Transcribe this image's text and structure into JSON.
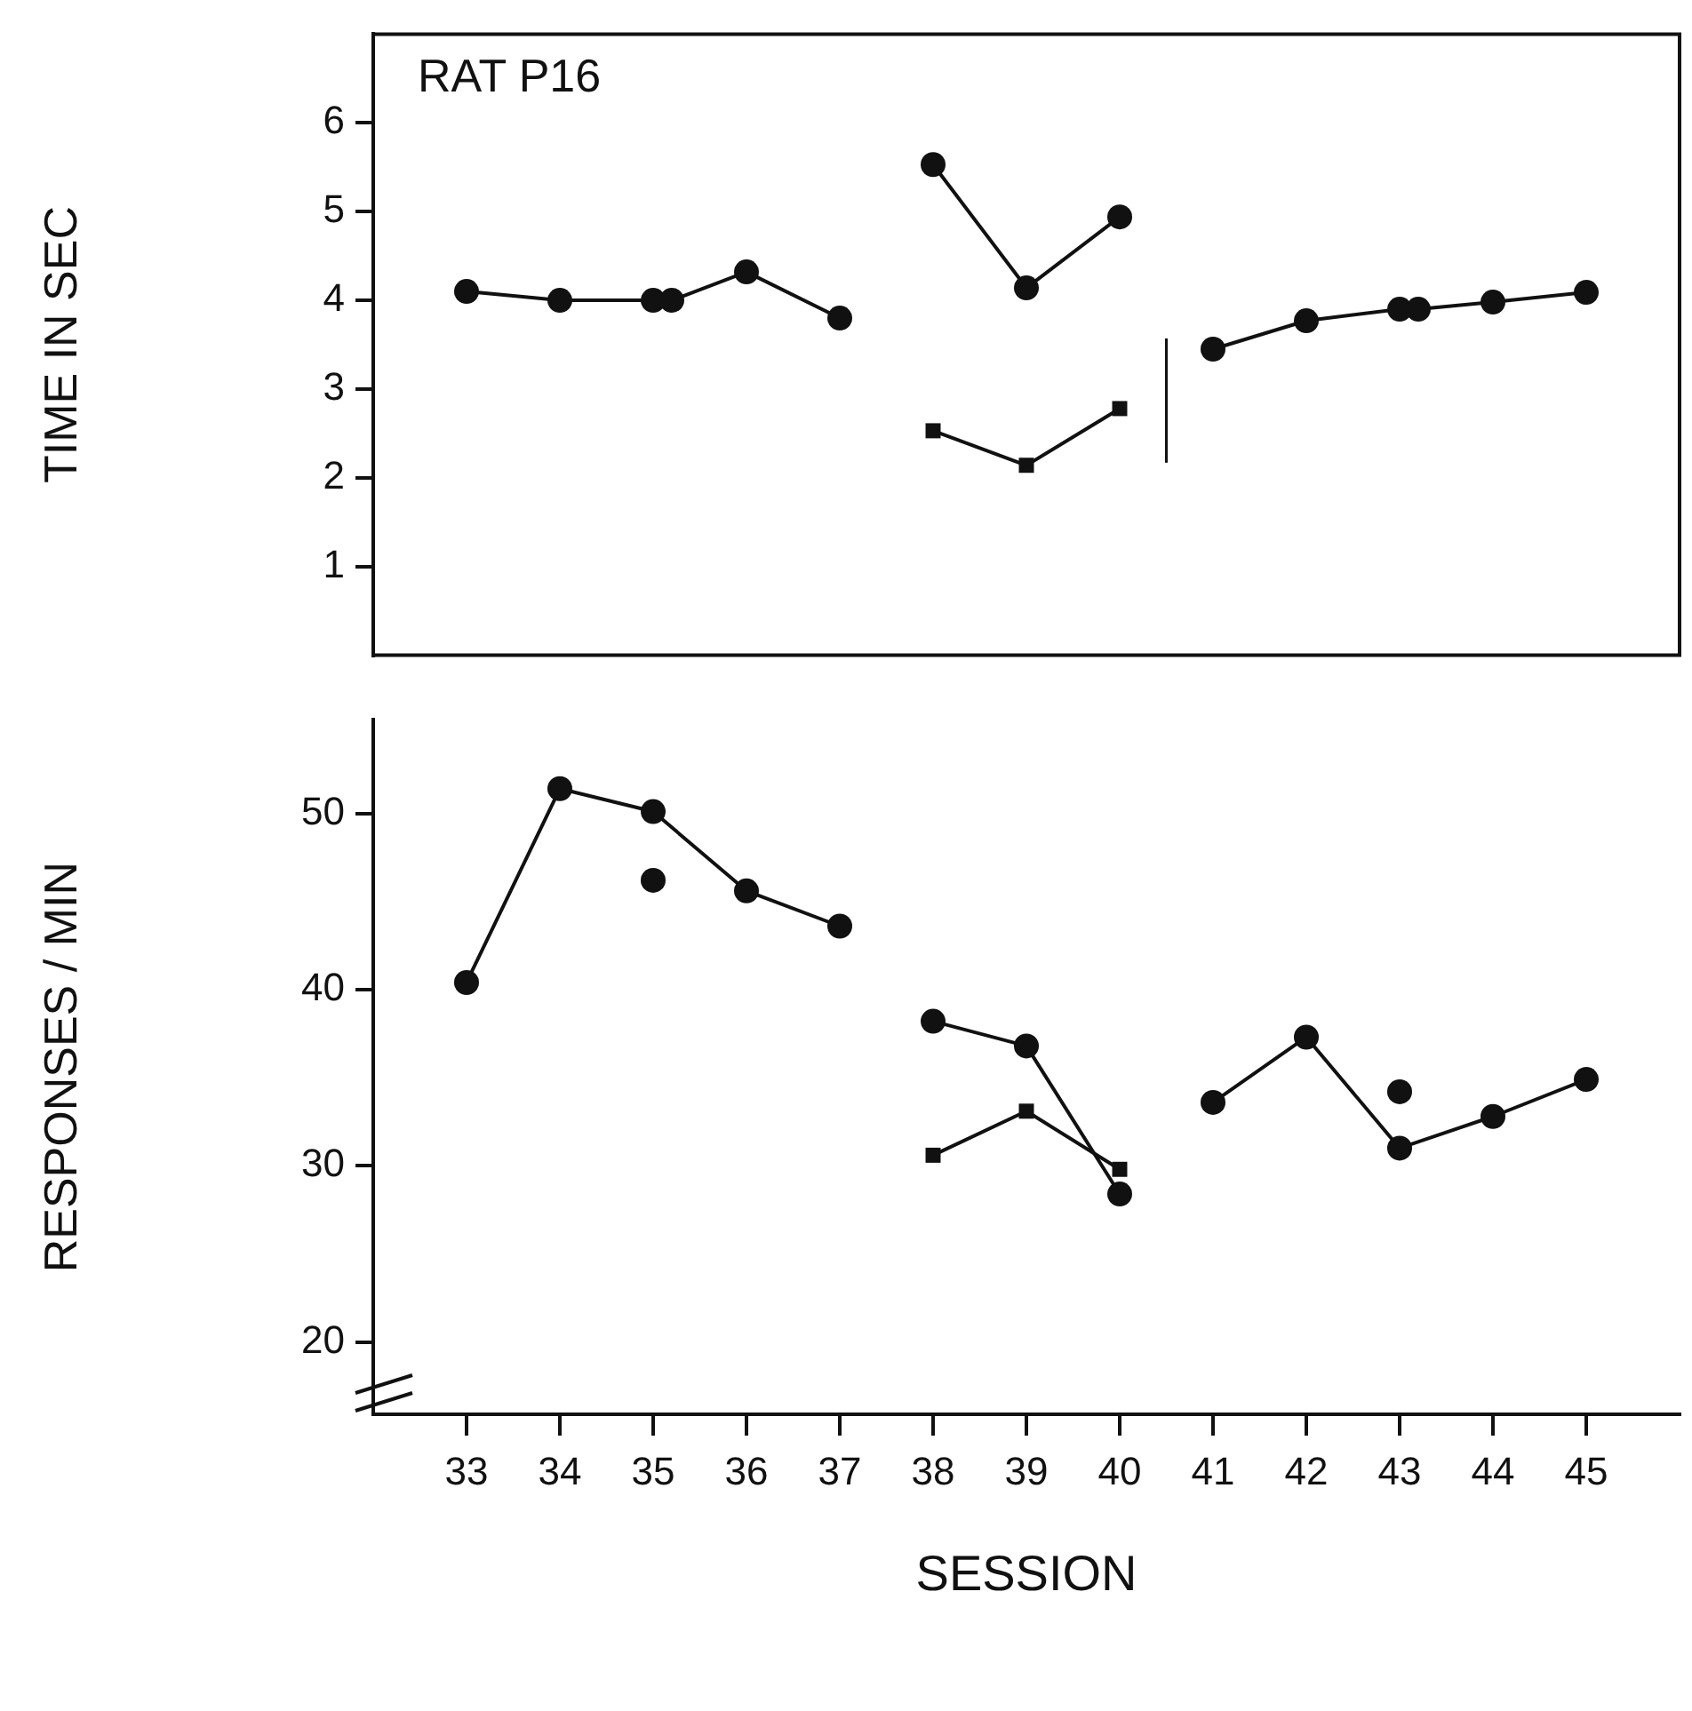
{
  "chart_data": [
    {
      "type": "line",
      "ylabel": "TIME IN SEC",
      "annotations": [
        "RAT P16"
      ],
      "xlim": [
        32,
        46
      ],
      "ylim": [
        0,
        7
      ],
      "yticks": [
        1,
        2,
        3,
        4,
        5,
        6
      ],
      "tick_labels": "y",
      "grid": false,
      "legend": false,
      "line_style": "solid",
      "ref_lines": [
        {
          "axis": "x",
          "value": 40.5,
          "color": "#111111"
        }
      ],
      "series": [
        {
          "color": "#111111",
          "marker": "circle",
          "x": [
            33,
            34,
            35,
            35.2,
            36,
            37,
            37.5,
            38,
            39,
            40,
            40.5,
            41,
            42,
            43,
            43.2,
            44,
            45
          ],
          "values": [
            4.1,
            4.0,
            4.0,
            4.0,
            4.32,
            3.8,
            null,
            5.53,
            4.14,
            4.94,
            null,
            3.45,
            3.77,
            3.9,
            3.9,
            3.98,
            4.09
          ]
        },
        {
          "color": "#111111",
          "marker": "square",
          "x": [
            38,
            39,
            40
          ],
          "values": [
            2.53,
            2.14,
            2.78
          ]
        }
      ]
    },
    {
      "type": "line",
      "xlabel": "SESSION",
      "ylabel": "RESPONSES / MIN",
      "xlim": [
        32,
        46
      ],
      "xticks": [
        33,
        34,
        35,
        36,
        37,
        38,
        39,
        40,
        41,
        42,
        43,
        44,
        45
      ],
      "ylim": [
        15.9,
        55.3
      ],
      "yticks": [
        20,
        30,
        40,
        50
      ],
      "grid": false,
      "legend": false,
      "line_style": "solid",
      "series": [
        {
          "color": "#111111",
          "marker": "circle",
          "x": [
            33,
            34,
            35,
            36,
            37,
            37.5,
            38,
            39,
            40,
            40.5,
            41,
            42,
            43,
            44,
            45
          ],
          "values": [
            40.4,
            51.4,
            50.1,
            45.6,
            43.6,
            null,
            38.2,
            36.8,
            28.4,
            null,
            33.6,
            37.3,
            31.0,
            32.8,
            34.9
          ]
        },
        {
          "color": "#111111",
          "marker": "square",
          "x": [
            38,
            39,
            40
          ],
          "values": [
            30.6,
            33.1,
            29.8
          ]
        },
        {
          "type": "scatter",
          "color": "#111111",
          "marker": "circle",
          "x": [
            35,
            43
          ],
          "values": [
            46.2,
            34.2
          ]
        }
      ]
    }
  ]
}
